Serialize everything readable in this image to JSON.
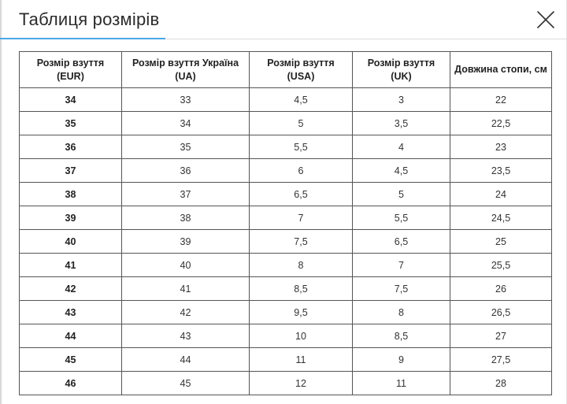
{
  "header": {
    "title": "Таблиця розмірів"
  },
  "colors": {
    "accent": "#49a8e6",
    "border": "#555555",
    "divider": "#dcdcdc"
  },
  "icons": {
    "close": "close-icon"
  },
  "table": {
    "columns": [
      "Розмір взуття (EUR)",
      "Розмір взуття Україна (UA)",
      "Розмір взуття (USA)",
      "Розмір взуття (UK)",
      "Довжина стопи, см"
    ],
    "rows": [
      [
        "34",
        "33",
        "4,5",
        "3",
        "22"
      ],
      [
        "35",
        "34",
        "5",
        "3,5",
        "22,5"
      ],
      [
        "36",
        "35",
        "5,5",
        "4",
        "23"
      ],
      [
        "37",
        "36",
        "6",
        "4,5",
        "23,5"
      ],
      [
        "38",
        "37",
        "6,5",
        "5",
        "24"
      ],
      [
        "39",
        "38",
        "7",
        "5,5",
        "24,5"
      ],
      [
        "40",
        "39",
        "7,5",
        "6,5",
        "25"
      ],
      [
        "41",
        "40",
        "8",
        "7",
        "25,5"
      ],
      [
        "42",
        "41",
        "8,5",
        "7,5",
        "26"
      ],
      [
        "43",
        "42",
        "9,5",
        "8",
        "26,5"
      ],
      [
        "44",
        "43",
        "10",
        "8,5",
        "27"
      ],
      [
        "45",
        "44",
        "11",
        "9",
        "27,5"
      ],
      [
        "46",
        "45",
        "12",
        "11",
        "28"
      ]
    ]
  }
}
